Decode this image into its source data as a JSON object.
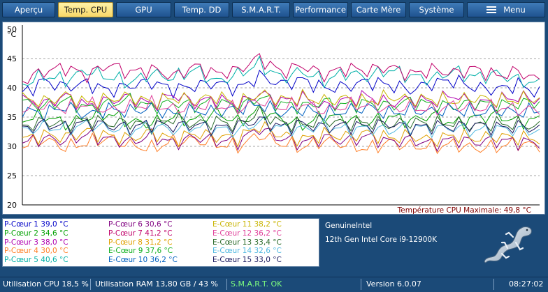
{
  "tabs": [
    {
      "label": "Aperçu",
      "active": false
    },
    {
      "label": "Temp. CPU",
      "active": true
    },
    {
      "label": "GPU",
      "active": false
    },
    {
      "label": "Temp. DD",
      "active": false
    },
    {
      "label": "S.M.A.R.T.",
      "active": false
    },
    {
      "label": "Performance",
      "active": false
    },
    {
      "label": "Carte Mère",
      "active": false
    },
    {
      "label": "Système",
      "active": false
    },
    {
      "label": "Menu",
      "active": false,
      "icon": "hamburger-menu-icon"
    }
  ],
  "chart_data": {
    "type": "line",
    "ylabel": "°C",
    "ylim": [
      20,
      50
    ],
    "yticks": [
      "50",
      "45",
      "40",
      "35",
      "30",
      "25",
      "20"
    ],
    "grid": "dashed horizontal",
    "annotation": "Température CPU Maximale: 49,8 °C",
    "series": [
      {
        "name": "P-Cœur 1",
        "color": "#0000c8",
        "values": [
          39.0,
          41.2,
          40.1,
          40.8,
          39.5,
          40.4,
          41.0,
          39.7,
          40.3,
          40.9,
          39.8,
          42.0,
          40.6,
          41.4,
          39.9,
          40.2,
          41.1,
          40.5,
          39.6,
          40.8,
          41.3,
          40.0,
          39.7,
          40.6,
          39.0
        ]
      },
      {
        "name": "P-Cœur 2",
        "color": "#00a000",
        "values": [
          34.6,
          35.3,
          33.8,
          34.9,
          35.6,
          34.2,
          33.9,
          35.0,
          34.4,
          35.8,
          34.1,
          36.2,
          34.7,
          33.6,
          35.2,
          34.8,
          33.9,
          35.1,
          34.3,
          35.4,
          33.8,
          34.9,
          35.3,
          34.2,
          34.6
        ]
      },
      {
        "name": "P-Cœur 3",
        "color": "#b000b0",
        "values": [
          38.0,
          37.2,
          38.6,
          36.9,
          37.8,
          38.4,
          37.1,
          38.9,
          37.5,
          38.2,
          37.0,
          39.1,
          37.7,
          38.3,
          36.8,
          37.9,
          38.6,
          37.3,
          38.1,
          37.6,
          38.8,
          37.2,
          37.9,
          38.4,
          38.0
        ]
      },
      {
        "name": "P-Cœur 4",
        "color": "#ff7f27",
        "values": [
          30.0,
          31.2,
          29.8,
          30.6,
          31.4,
          30.2,
          29.6,
          30.9,
          31.1,
          30.4,
          29.9,
          32.0,
          30.5,
          29.8,
          31.0,
          30.3,
          29.5,
          30.7,
          30.1,
          29.8,
          30.4,
          29.6,
          29.9,
          30.6,
          30.0
        ]
      },
      {
        "name": "P-Cœur 5",
        "color": "#00b0a8",
        "values": [
          40.6,
          42.1,
          41.3,
          43.0,
          41.8,
          40.9,
          42.5,
          41.6,
          43.2,
          41.0,
          42.3,
          44.1,
          41.7,
          42.8,
          41.2,
          42.6,
          41.9,
          43.1,
          42.0,
          41.5,
          42.9,
          41.8,
          42.4,
          41.3,
          40.6
        ]
      },
      {
        "name": "P-Cœur 6",
        "color": "#800080",
        "values": [
          30.6,
          31.4,
          30.9,
          32.0,
          31.2,
          30.7,
          31.8,
          30.5,
          31.6,
          31.0,
          30.8,
          33.1,
          31.3,
          30.6,
          31.5,
          30.9,
          31.7,
          30.8,
          31.1,
          30.4,
          31.2,
          30.7,
          31.0,
          30.8,
          30.6
        ]
      },
      {
        "name": "P-Cœur 7",
        "color": "#c0006a",
        "values": [
          41.2,
          42.8,
          43.5,
          42.1,
          44.0,
          42.6,
          43.2,
          41.9,
          43.7,
          42.4,
          43.0,
          45.2,
          42.7,
          43.8,
          42.2,
          43.4,
          42.9,
          43.6,
          42.3,
          43.1,
          42.5,
          43.3,
          42.0,
          42.8,
          41.2
        ]
      },
      {
        "name": "P-Cœur 8",
        "color": "#e0a000",
        "values": [
          31.2,
          32.0,
          31.5,
          32.6,
          31.8,
          31.3,
          32.4,
          31.1,
          32.2,
          31.7,
          31.4,
          33.5,
          31.9,
          31.2,
          32.1,
          31.6,
          32.3,
          31.4,
          31.8,
          31.0,
          31.9,
          31.3,
          31.7,
          31.5,
          31.2
        ]
      },
      {
        "name": "E-Cœur 9",
        "color": "#10b020",
        "values": [
          37.6,
          36.8,
          37.9,
          36.5,
          37.3,
          38.0,
          36.7,
          37.5,
          36.9,
          37.8,
          36.6,
          38.4,
          37.2,
          36.8,
          37.6,
          37.0,
          37.4,
          36.9,
          37.7,
          37.1,
          36.8,
          37.5,
          37.0,
          37.3,
          37.6
        ]
      },
      {
        "name": "E-Cœur 10",
        "color": "#0060c0",
        "values": [
          36.2,
          35.6,
          36.8,
          35.3,
          36.4,
          35.9,
          36.6,
          35.4,
          36.1,
          35.8,
          36.5,
          37.2,
          35.7,
          36.3,
          35.5,
          36.0,
          36.7,
          35.6,
          36.2,
          35.9,
          36.4,
          35.7,
          36.1,
          35.8,
          36.2
        ]
      },
      {
        "name": "E-Cœur 11",
        "color": "#c8b400",
        "values": [
          38.2,
          37.6,
          38.7,
          37.4,
          38.1,
          38.5,
          37.5,
          38.3,
          37.8,
          38.6,
          37.3,
          39.0,
          37.9,
          38.4,
          37.7,
          38.2,
          37.6,
          38.5,
          37.9,
          38.1,
          37.7,
          38.3,
          37.8,
          38.0,
          38.2
        ]
      },
      {
        "name": "E-Cœur 12",
        "color": "#e0409a",
        "values": [
          36.2,
          37.1,
          36.5,
          37.4,
          36.0,
          36.8,
          37.2,
          36.3,
          36.9,
          37.0,
          36.4,
          37.8,
          36.6,
          37.3,
          36.1,
          36.9,
          37.1,
          36.4,
          36.8,
          36.2,
          37.0,
          36.5,
          36.7,
          36.3,
          36.2
        ]
      },
      {
        "name": "E-Cœur 13",
        "color": "#2a6a2a",
        "values": [
          33.4,
          34.2,
          33.7,
          34.6,
          33.9,
          34.1,
          33.5,
          34.8,
          33.8,
          34.3,
          33.6,
          35.9,
          34.0,
          33.7,
          34.4,
          33.9,
          34.1,
          33.6,
          34.2,
          33.8,
          34.0,
          33.5,
          33.9,
          33.7,
          33.4
        ]
      },
      {
        "name": "E-Cœur 14",
        "color": "#50b8e0",
        "values": [
          32.6,
          33.4,
          32.9,
          33.8,
          33.1,
          32.7,
          33.5,
          32.8,
          33.3,
          33.0,
          32.6,
          34.2,
          33.2,
          32.9,
          33.6,
          32.8,
          33.1,
          32.7,
          33.4,
          32.9,
          33.2,
          32.6,
          33.0,
          32.8,
          32.6
        ]
      },
      {
        "name": "E-Cœur 15",
        "color": "#1a1a60",
        "values": [
          33.0,
          33.8,
          33.3,
          34.1,
          33.5,
          33.2,
          33.9,
          33.4,
          33.7,
          33.1,
          33.6,
          34.5,
          33.3,
          33.8,
          33.2,
          33.6,
          33.4,
          33.9,
          33.1,
          33.5,
          33.3,
          33.7,
          33.2,
          33.4,
          33.0
        ]
      }
    ]
  },
  "legend": [
    {
      "label": "P-Cœur 1 39,0 °C",
      "color": "#0000c8"
    },
    {
      "label": "P-Cœur 2 34,6 °C",
      "color": "#00a000"
    },
    {
      "label": "P-Cœur 3 38,0 °C",
      "color": "#b000b0"
    },
    {
      "label": "P-Cœur 4 30,0 °C",
      "color": "#ff7f27"
    },
    {
      "label": "P-Cœur 5 40,6 °C",
      "color": "#00b0a8"
    },
    {
      "label": "P-Cœur 6 30,6 °C",
      "color": "#800080"
    },
    {
      "label": "P-Cœur 7 41,2 °C",
      "color": "#c0006a"
    },
    {
      "label": "P-Cœur 8 31,2 °C",
      "color": "#e0a000"
    },
    {
      "label": "E-Cœur 9 37,6 °C",
      "color": "#10b020"
    },
    {
      "label": "E-Cœur 10 36,2 °C",
      "color": "#0060c0"
    },
    {
      "label": "E-Cœur 11 38,2 °C",
      "color": "#c8b400"
    },
    {
      "label": "E-Cœur 12 36,2 °C",
      "color": "#e0409a"
    },
    {
      "label": "E-Cœur 13 33,4 °C",
      "color": "#2a6a2a"
    },
    {
      "label": "E-Cœur 14 32,6 °C",
      "color": "#50b8e0"
    },
    {
      "label": "E-Cœur 15 33,0 °C",
      "color": "#1a1a60"
    }
  ],
  "cpu_info": {
    "vendor": "GenuineIntel",
    "model": "12th Gen Intel Core i9-12900K",
    "logo": "salamander-logo-icon"
  },
  "status": {
    "cpu": "Utilisation CPU 18,5 %",
    "ram": "Utilisation RAM 13,80 GB / 43 %",
    "smart": "S.M.A.R.T. OK",
    "smart_color": "#7fff7f",
    "version": "Version 6.0.07",
    "time": "08:27:02"
  }
}
